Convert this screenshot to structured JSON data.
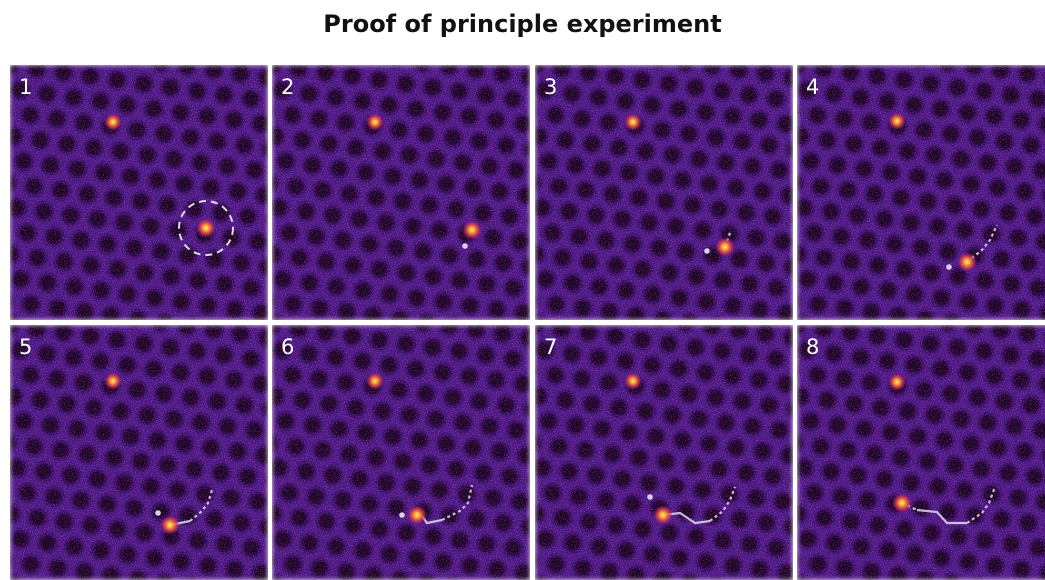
{
  "header": {
    "title": "Proof of principle experiment"
  },
  "panels": [
    {
      "label": "1"
    },
    {
      "label": "2"
    },
    {
      "label": "3"
    },
    {
      "label": "4"
    },
    {
      "label": "5"
    },
    {
      "label": "6"
    },
    {
      "label": "7"
    },
    {
      "label": "8"
    }
  ]
}
